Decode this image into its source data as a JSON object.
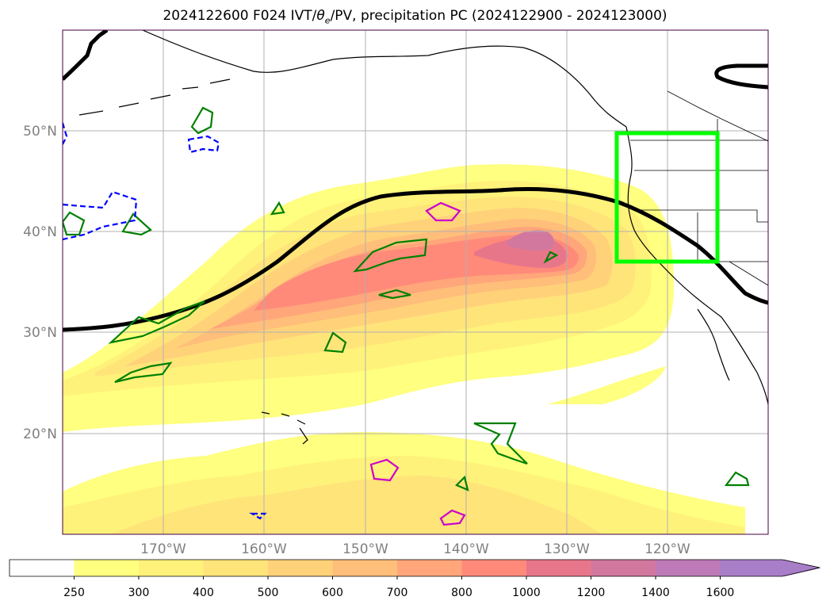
{
  "title": {
    "main": "2024122600 F024 IVT/",
    "theta": "θ",
    "theta_sub": "e",
    "rest": "/PV, precipitation PC (2024122900 - 2024123000)"
  },
  "axes": {
    "lon_ticks": [
      "170°W",
      "160°W",
      "150°W",
      "140°W",
      "130°W",
      "120°W"
    ],
    "lat_ticks": [
      "50°N",
      "40°N",
      "30°N",
      "20°N"
    ]
  },
  "colorbar": {
    "levels": [
      "250",
      "300",
      "400",
      "500",
      "600",
      "700",
      "800",
      "1000",
      "1200",
      "1400",
      "1600"
    ],
    "colors": [
      "#ffffff",
      "#ffff80",
      "#fff27a",
      "#ffe47a",
      "#ffd27a",
      "#ffbe7a",
      "#ffa67a",
      "#ff8a7a",
      "#e8768a",
      "#d2789e",
      "#be7ab8",
      "#a87ec8"
    ]
  },
  "colors": {
    "geopotential_contour": "#000000",
    "pv_positive": "#008000",
    "pv_negative": "#0000ff",
    "precip": "#cc00cc",
    "region_box": "#00ff00"
  },
  "icons": {
    "colorbar_extend": "triangle-arrow-right"
  }
}
